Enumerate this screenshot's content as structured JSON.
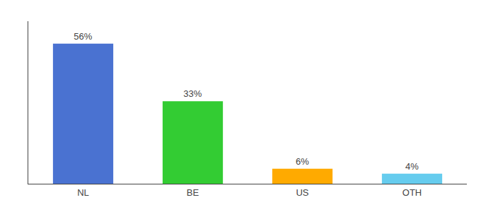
{
  "chart_data": {
    "type": "bar",
    "categories": [
      "NL",
      "BE",
      "US",
      "OTH"
    ],
    "values": [
      56,
      33,
      6,
      4
    ],
    "value_labels": [
      "56%",
      "33%",
      "6%",
      "4%"
    ],
    "colors": [
      "#4a72d1",
      "#33cc33",
      "#ffaa00",
      "#66ccee"
    ],
    "ylim": [
      0,
      65
    ],
    "data_labels": true,
    "tick_labels": "x",
    "grid": false
  }
}
